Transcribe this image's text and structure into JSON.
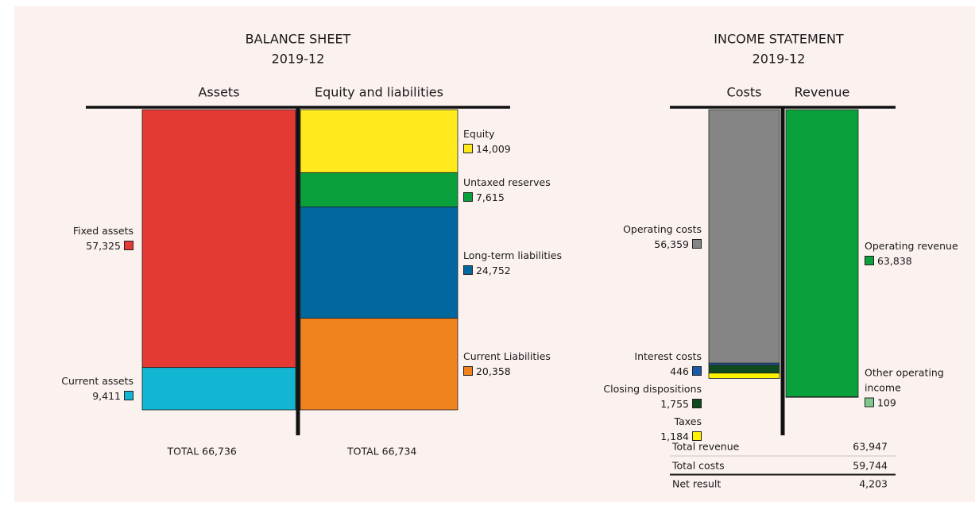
{
  "chart_data": [
    {
      "type": "stacked_bar",
      "title": "BALANCE SHEET",
      "subtitle": "2019-12",
      "columns": [
        {
          "name": "Assets",
          "total_label": "TOTAL 66,736",
          "segments": [
            {
              "name": "Fixed assets",
              "value": 57325,
              "value_label": "57,325",
              "color": "#e53935"
            },
            {
              "name": "Current assets",
              "value": 9411,
              "value_label": "9,411",
              "color": "#13b6d2"
            }
          ]
        },
        {
          "name": "Equity and liabilities",
          "total_label": "TOTAL 66,734",
          "segments": [
            {
              "name": "Equity",
              "value": 14009,
              "value_label": "14,009",
              "color": "#ffea1e"
            },
            {
              "name": "Untaxed reserves",
              "value": 7615,
              "value_label": "7,615",
              "color": "#0aa03c"
            },
            {
              "name": "Long-term liabilities",
              "value": 24752,
              "value_label": "24,752",
              "color": "#02679e"
            },
            {
              "name": "Current Liabilities",
              "value": 20358,
              "value_label": "20,358",
              "color": "#f0831e"
            }
          ]
        }
      ]
    },
    {
      "type": "stacked_bar",
      "title": "INCOME STATEMENT",
      "subtitle": "2019-12",
      "columns": [
        {
          "name": "Costs",
          "segments": [
            {
              "name": "Operating costs",
              "value": 56359,
              "value_label": "56,359",
              "color": "#858585"
            },
            {
              "name": "Interest costs",
              "value": 446,
              "value_label": "446",
              "color": "#1b5aa8"
            },
            {
              "name": "Closing dispositions",
              "value": 1755,
              "value_label": "1,755",
              "color": "#0f4a1e"
            },
            {
              "name": "Taxes",
              "value": 1184,
              "value_label": "1,184",
              "color": "#fff200"
            }
          ]
        },
        {
          "name": "Revenue",
          "segments": [
            {
              "name": "Operating revenue",
              "value": 63838,
              "value_label": "63,838",
              "color": "#0aa03c"
            },
            {
              "name": "Other operating income",
              "value": 109,
              "value_label": "109",
              "color": "#7fc98f"
            }
          ]
        }
      ],
      "summary": [
        {
          "label": "Total revenue",
          "value_label": "63,947"
        },
        {
          "label": "Total costs",
          "value_label": "59,744"
        },
        {
          "label": "Net result",
          "value_label": "4,203"
        }
      ]
    }
  ]
}
